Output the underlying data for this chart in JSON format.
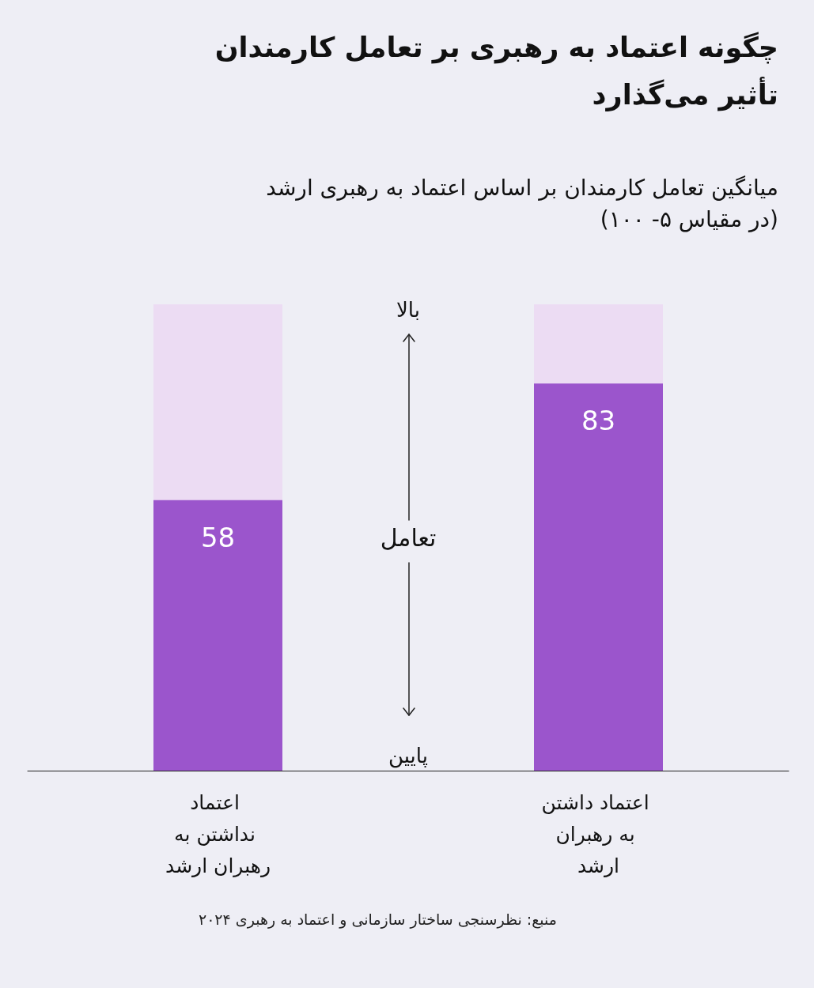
{
  "chart_data": {
    "type": "bar",
    "title": "چگونه اعتماد به رهبری بر تعامل کارمندان تأثیر می‌گذارد",
    "subtitle": "میانگین تعامل کارمندان بر اساس اعتماد به رهبری ارشد (در مقیاس ۵- ۱۰۰)",
    "ylabel": "تعامل",
    "categories": [
      "اعتماد نداشتن به رهبران ارشد",
      "اعتماد داشتن به رهبران ارشد"
    ],
    "values": [
      58,
      83
    ],
    "color": "#9b55cc",
    "ylim": [
      0,
      100
    ],
    "data_labels": true,
    "grid": false,
    "annotations": [
      "بالا",
      "پایین",
      "منبع: نظرسنجی ساختار سازمانی و اعتماد به رهبری ۲۰۲۴"
    ]
  }
}
